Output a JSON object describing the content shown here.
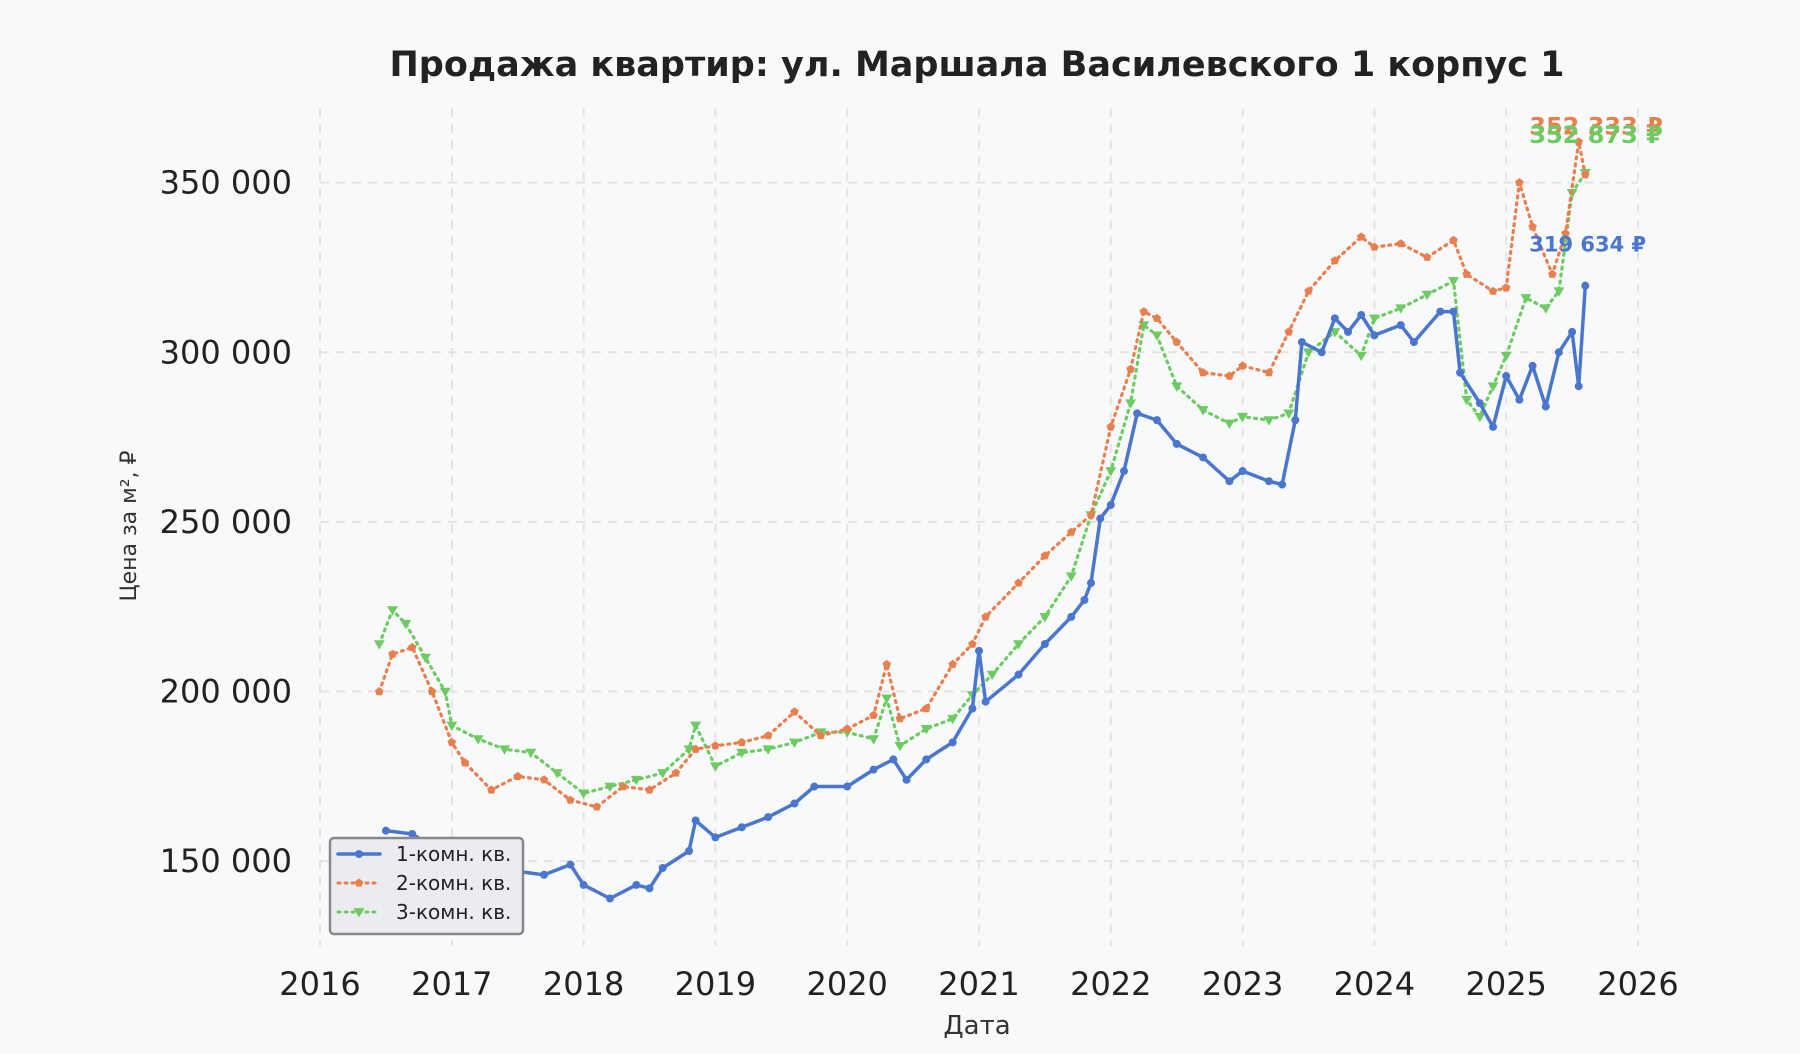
{
  "chart_data": {
    "type": "line",
    "title": "Продажа квартир: ул. Маршала Василевского 1 корпус 1",
    "xlabel": "Дата",
    "ylabel": "Цена за м², ₽",
    "xlim": [
      2016,
      2026
    ],
    "ylim": [
      125000,
      372000
    ],
    "x_ticks": [
      2016,
      2017,
      2018,
      2019,
      2020,
      2021,
      2022,
      2023,
      2024,
      2025,
      2026
    ],
    "x_tick_labels": [
      "2016",
      "2017",
      "2018",
      "2019",
      "2020",
      "2021",
      "2022",
      "2023",
      "2024",
      "2025",
      "2026"
    ],
    "y_ticks": [
      150000,
      200000,
      250000,
      300000,
      350000
    ],
    "y_tick_labels": [
      "150 000",
      "200 000",
      "250 000",
      "300 000",
      "350 000"
    ],
    "grid": true,
    "legend_position": "bottom-left",
    "series": [
      {
        "name": "1-комн. кв.",
        "color": "#4a76cd",
        "line_style": "solid",
        "marker": "circle",
        "end_label": "319 634 ₽",
        "points": [
          [
            2016.5,
            159000
          ],
          [
            2016.7,
            158000
          ],
          [
            2016.9,
            153000
          ],
          [
            2017.1,
            150000
          ],
          [
            2017.3,
            148000
          ],
          [
            2017.5,
            147000
          ],
          [
            2017.7,
            146000
          ],
          [
            2017.9,
            149000
          ],
          [
            2018.0,
            143000
          ],
          [
            2018.2,
            139000
          ],
          [
            2018.4,
            143000
          ],
          [
            2018.5,
            142000
          ],
          [
            2018.6,
            148000
          ],
          [
            2018.8,
            153000
          ],
          [
            2018.85,
            162000
          ],
          [
            2019.0,
            157000
          ],
          [
            2019.2,
            160000
          ],
          [
            2019.4,
            163000
          ],
          [
            2019.6,
            167000
          ],
          [
            2019.75,
            172000
          ],
          [
            2020.0,
            172000
          ],
          [
            2020.2,
            177000
          ],
          [
            2020.35,
            180000
          ],
          [
            2020.45,
            174000
          ],
          [
            2020.6,
            180000
          ],
          [
            2020.8,
            185000
          ],
          [
            2020.95,
            195000
          ],
          [
            2021.0,
            212000
          ],
          [
            2021.05,
            197000
          ],
          [
            2021.3,
            205000
          ],
          [
            2021.5,
            214000
          ],
          [
            2021.7,
            222000
          ],
          [
            2021.8,
            227000
          ],
          [
            2021.85,
            232000
          ],
          [
            2021.92,
            251000
          ],
          [
            2022.0,
            255000
          ],
          [
            2022.1,
            265000
          ],
          [
            2022.2,
            282000
          ],
          [
            2022.35,
            280000
          ],
          [
            2022.5,
            273000
          ],
          [
            2022.7,
            269000
          ],
          [
            2022.9,
            262000
          ],
          [
            2023.0,
            265000
          ],
          [
            2023.2,
            262000
          ],
          [
            2023.3,
            261000
          ],
          [
            2023.4,
            280000
          ],
          [
            2023.45,
            303000
          ],
          [
            2023.6,
            300000
          ],
          [
            2023.7,
            310000
          ],
          [
            2023.8,
            306000
          ],
          [
            2023.9,
            311000
          ],
          [
            2024.0,
            305000
          ],
          [
            2024.2,
            308000
          ],
          [
            2024.3,
            303000
          ],
          [
            2024.5,
            312000
          ],
          [
            2024.6,
            312000
          ],
          [
            2024.65,
            294000
          ],
          [
            2024.8,
            285000
          ],
          [
            2024.9,
            278000
          ],
          [
            2025.0,
            293000
          ],
          [
            2025.1,
            286000
          ],
          [
            2025.2,
            296000
          ],
          [
            2025.3,
            284000
          ],
          [
            2025.4,
            300000
          ],
          [
            2025.5,
            306000
          ],
          [
            2025.55,
            290000
          ],
          [
            2025.6,
            319634
          ]
        ]
      },
      {
        "name": "2-комн. кв.",
        "color": "#e87f4e",
        "line_style": "dotted",
        "marker": "pentagon",
        "end_label": "352 333 ₽",
        "points": [
          [
            2016.45,
            200000
          ],
          [
            2016.55,
            211000
          ],
          [
            2016.7,
            213000
          ],
          [
            2016.85,
            200000
          ],
          [
            2017.0,
            185000
          ],
          [
            2017.1,
            179000
          ],
          [
            2017.3,
            171000
          ],
          [
            2017.5,
            175000
          ],
          [
            2017.7,
            174000
          ],
          [
            2017.9,
            168000
          ],
          [
            2018.1,
            166000
          ],
          [
            2018.3,
            172000
          ],
          [
            2018.5,
            171000
          ],
          [
            2018.7,
            176000
          ],
          [
            2018.85,
            183000
          ],
          [
            2019.0,
            184000
          ],
          [
            2019.2,
            185000
          ],
          [
            2019.4,
            187000
          ],
          [
            2019.6,
            194000
          ],
          [
            2019.8,
            187000
          ],
          [
            2020.0,
            189000
          ],
          [
            2020.2,
            193000
          ],
          [
            2020.3,
            208000
          ],
          [
            2020.4,
            192000
          ],
          [
            2020.6,
            195000
          ],
          [
            2020.8,
            208000
          ],
          [
            2020.95,
            214000
          ],
          [
            2021.05,
            222000
          ],
          [
            2021.3,
            232000
          ],
          [
            2021.5,
            240000
          ],
          [
            2021.7,
            247000
          ],
          [
            2021.85,
            252000
          ],
          [
            2022.0,
            278000
          ],
          [
            2022.15,
            295000
          ],
          [
            2022.25,
            312000
          ],
          [
            2022.35,
            310000
          ],
          [
            2022.5,
            303000
          ],
          [
            2022.7,
            294000
          ],
          [
            2022.9,
            293000
          ],
          [
            2023.0,
            296000
          ],
          [
            2023.2,
            294000
          ],
          [
            2023.35,
            306000
          ],
          [
            2023.5,
            318000
          ],
          [
            2023.7,
            327000
          ],
          [
            2023.9,
            334000
          ],
          [
            2024.0,
            331000
          ],
          [
            2024.2,
            332000
          ],
          [
            2024.4,
            328000
          ],
          [
            2024.6,
            333000
          ],
          [
            2024.7,
            323000
          ],
          [
            2024.9,
            318000
          ],
          [
            2025.0,
            319000
          ],
          [
            2025.1,
            350000
          ],
          [
            2025.2,
            337000
          ],
          [
            2025.35,
            323000
          ],
          [
            2025.45,
            335000
          ],
          [
            2025.55,
            362000
          ],
          [
            2025.6,
            352333
          ]
        ]
      },
      {
        "name": "3-комн. кв.",
        "color": "#6ecb63",
        "line_style": "dotted",
        "marker": "triangle",
        "end_label": "352 873 ₽",
        "points": [
          [
            2016.45,
            214000
          ],
          [
            2016.55,
            224000
          ],
          [
            2016.65,
            220000
          ],
          [
            2016.8,
            210000
          ],
          [
            2016.95,
            200000
          ],
          [
            2017.0,
            190000
          ],
          [
            2017.2,
            186000
          ],
          [
            2017.4,
            183000
          ],
          [
            2017.6,
            182000
          ],
          [
            2017.8,
            176000
          ],
          [
            2018.0,
            170000
          ],
          [
            2018.2,
            172000
          ],
          [
            2018.4,
            174000
          ],
          [
            2018.6,
            176000
          ],
          [
            2018.8,
            183000
          ],
          [
            2018.85,
            190000
          ],
          [
            2019.0,
            178000
          ],
          [
            2019.2,
            182000
          ],
          [
            2019.4,
            183000
          ],
          [
            2019.6,
            185000
          ],
          [
            2019.8,
            188000
          ],
          [
            2020.0,
            188000
          ],
          [
            2020.2,
            186000
          ],
          [
            2020.3,
            198000
          ],
          [
            2020.4,
            184000
          ],
          [
            2020.6,
            189000
          ],
          [
            2020.8,
            192000
          ],
          [
            2020.95,
            199000
          ],
          [
            2021.1,
            205000
          ],
          [
            2021.3,
            214000
          ],
          [
            2021.5,
            222000
          ],
          [
            2021.7,
            234000
          ],
          [
            2021.85,
            252000
          ],
          [
            2022.0,
            265000
          ],
          [
            2022.15,
            285000
          ],
          [
            2022.25,
            308000
          ],
          [
            2022.35,
            305000
          ],
          [
            2022.5,
            290000
          ],
          [
            2022.7,
            283000
          ],
          [
            2022.9,
            279000
          ],
          [
            2023.0,
            281000
          ],
          [
            2023.2,
            280000
          ],
          [
            2023.35,
            282000
          ],
          [
            2023.5,
            300000
          ],
          [
            2023.7,
            306000
          ],
          [
            2023.9,
            299000
          ],
          [
            2024.0,
            310000
          ],
          [
            2024.2,
            313000
          ],
          [
            2024.4,
            317000
          ],
          [
            2024.6,
            321000
          ],
          [
            2024.7,
            286000
          ],
          [
            2024.8,
            281000
          ],
          [
            2024.9,
            290000
          ],
          [
            2025.0,
            299000
          ],
          [
            2025.15,
            316000
          ],
          [
            2025.3,
            313000
          ],
          [
            2025.4,
            318000
          ],
          [
            2025.5,
            347000
          ],
          [
            2025.6,
            352873
          ]
        ]
      }
    ]
  }
}
